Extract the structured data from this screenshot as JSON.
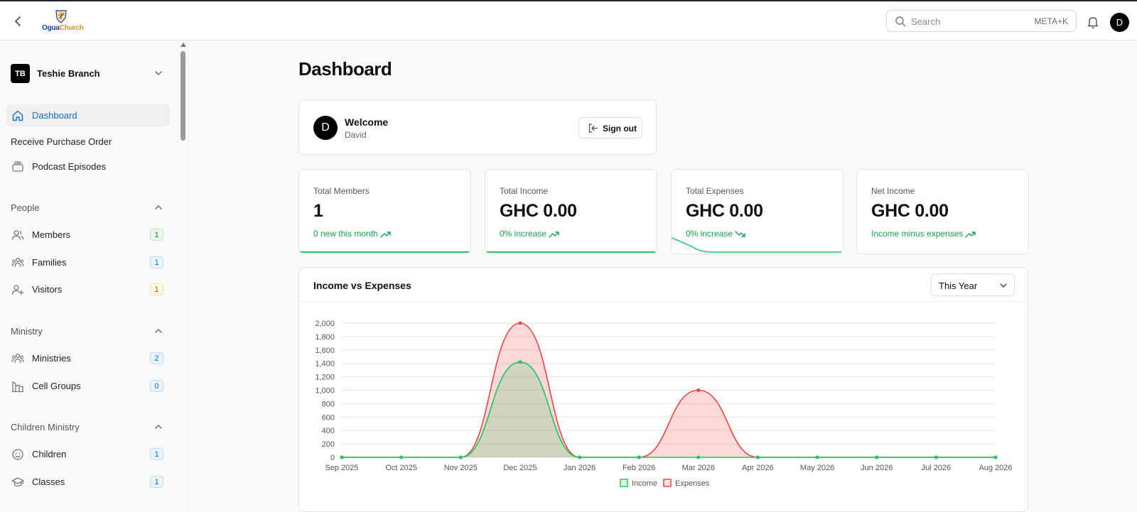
{
  "app": {
    "logo_part1": "Ogua",
    "logo_part2": "Church"
  },
  "header": {
    "search_placeholder": "Search",
    "search_shortcut": "META+K",
    "avatar_initial": "D"
  },
  "sidebar": {
    "branch": {
      "initials": "TB",
      "name": "Teshie Branch"
    },
    "top_items": [
      {
        "label": "Dashboard"
      },
      {
        "label": "Receive Purchase Order"
      },
      {
        "label": "Podcast Episodes"
      }
    ],
    "sections": [
      {
        "label": "People",
        "items": [
          {
            "label": "Members",
            "count": "1"
          },
          {
            "label": "Families",
            "count": "1"
          },
          {
            "label": "Visitors",
            "count": "1"
          }
        ]
      },
      {
        "label": "Ministry",
        "items": [
          {
            "label": "Ministries",
            "count": "2"
          },
          {
            "label": "Cell Groups",
            "count": "0"
          }
        ]
      },
      {
        "label": "Children Ministry",
        "items": [
          {
            "label": "Children",
            "count": "1"
          },
          {
            "label": "Classes",
            "count": "1"
          }
        ]
      }
    ]
  },
  "main": {
    "title": "Dashboard",
    "welcome": {
      "avatar_initial": "D",
      "title": "Welcome",
      "name": "David",
      "signout_label": "Sign out"
    },
    "stats": [
      {
        "label": "Total Members",
        "value": "1",
        "note": "0 new this month",
        "trend": "up"
      },
      {
        "label": "Total Income",
        "value": "GHC 0.00",
        "note": "0% increase",
        "trend": "up"
      },
      {
        "label": "Total Expenses",
        "value": "GHC 0.00",
        "note": "0% increase",
        "trend": "down"
      },
      {
        "label": "Net Income",
        "value": "GHC 0.00",
        "note": "Income minus expenses",
        "trend": "up"
      }
    ],
    "chart_card": {
      "title": "Income vs Expenses",
      "range": "This Year"
    }
  },
  "colors": {
    "income": "#22c55e",
    "expenses": "#ef4444",
    "accent": "#1271c4"
  },
  "chart_data": {
    "type": "area",
    "title": "Income vs Expenses",
    "categories": [
      "Sep 2025",
      "Oct 2025",
      "Nov 2025",
      "Dec 2025",
      "Jan 2026",
      "Feb 2026",
      "Mar 2026",
      "Apr 2026",
      "May 2026",
      "Jun 2026",
      "Jul 2026",
      "Aug 2026"
    ],
    "series": [
      {
        "name": "Income",
        "values": [
          0,
          0,
          0,
          1420,
          0,
          0,
          0,
          0,
          0,
          0,
          0,
          0
        ]
      },
      {
        "name": "Expenses",
        "values": [
          0,
          0,
          0,
          2000,
          0,
          0,
          1000,
          0,
          0,
          0,
          0,
          0
        ]
      }
    ],
    "ylim": [
      0,
      2000
    ],
    "yticks": [
      "0",
      "200",
      "400",
      "600",
      "800",
      "1,000",
      "1,200",
      "1,400",
      "1,600",
      "1,800",
      "2,000"
    ],
    "grid": true,
    "legend": "bottom"
  }
}
